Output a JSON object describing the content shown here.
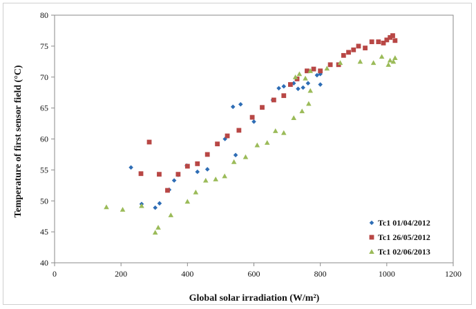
{
  "chart_data": {
    "type": "scatter",
    "xlabel": "Global solar irradiation (W/m²)",
    "ylabel": "Temperature of first sensor field (°C)",
    "xlim": [
      0,
      1200
    ],
    "ylim": [
      40,
      80
    ],
    "xticks": [
      0,
      200,
      400,
      600,
      800,
      1000,
      1200
    ],
    "yticks": [
      40,
      45,
      50,
      55,
      60,
      65,
      70,
      75,
      80
    ],
    "grid": false,
    "legend_position": "bottom-right",
    "series": [
      {
        "name": "Tc1 01/04/2012",
        "marker": "diamond",
        "color": "#2e6db5",
        "points": [
          [
            230,
            55.4
          ],
          [
            262,
            49.5
          ],
          [
            303,
            48.9
          ],
          [
            316,
            49.6
          ],
          [
            345,
            51.8
          ],
          [
            360,
            53.3
          ],
          [
            372,
            54.2
          ],
          [
            398,
            55.7
          ],
          [
            430,
            54.7
          ],
          [
            460,
            55.1
          ],
          [
            513,
            60
          ],
          [
            537,
            65.2
          ],
          [
            545,
            57.4
          ],
          [
            560,
            65.6
          ],
          [
            600,
            62.8
          ],
          [
            657,
            66.3
          ],
          [
            675,
            68.2
          ],
          [
            690,
            68.5
          ],
          [
            720,
            69
          ],
          [
            733,
            68.1
          ],
          [
            748,
            68.3
          ],
          [
            763,
            69
          ],
          [
            790,
            70.3
          ],
          [
            800,
            68.8
          ],
          [
            800,
            70.5
          ]
        ]
      },
      {
        "name": "Tc1 26/05/2012",
        "marker": "square",
        "color": "#b84745",
        "points": [
          [
            260,
            54.4
          ],
          [
            285,
            59.5
          ],
          [
            315,
            54.3
          ],
          [
            340,
            51.7
          ],
          [
            372,
            54.3
          ],
          [
            400,
            55.6
          ],
          [
            430,
            56
          ],
          [
            460,
            57.5
          ],
          [
            490,
            59.2
          ],
          [
            520,
            60.5
          ],
          [
            555,
            61.4
          ],
          [
            595,
            63.5
          ],
          [
            625,
            65.1
          ],
          [
            660,
            66.3
          ],
          [
            690,
            67
          ],
          [
            710,
            68.8
          ],
          [
            730,
            69.7
          ],
          [
            760,
            71
          ],
          [
            780,
            71.3
          ],
          [
            800,
            71
          ],
          [
            830,
            72
          ],
          [
            855,
            72
          ],
          [
            870,
            73.5
          ],
          [
            885,
            74
          ],
          [
            900,
            74.4
          ],
          [
            915,
            75
          ],
          [
            935,
            74.7
          ],
          [
            955,
            75.7
          ],
          [
            975,
            75.7
          ],
          [
            990,
            75.5
          ],
          [
            1000,
            76
          ],
          [
            1010,
            76.4
          ],
          [
            1018,
            76.7
          ],
          [
            1025,
            75.9
          ]
        ]
      },
      {
        "name": "Tc1 02/06/2013",
        "marker": "triangle",
        "color": "#9bbb59",
        "points": [
          [
            156,
            49
          ],
          [
            205,
            48.6
          ],
          [
            262,
            49.2
          ],
          [
            303,
            44.9
          ],
          [
            312,
            45.7
          ],
          [
            350,
            47.7
          ],
          [
            400,
            49.9
          ],
          [
            425,
            51.4
          ],
          [
            455,
            53.3
          ],
          [
            485,
            53.5
          ],
          [
            512,
            54
          ],
          [
            540,
            56.3
          ],
          [
            575,
            57.1
          ],
          [
            610,
            59
          ],
          [
            640,
            59.4
          ],
          [
            665,
            61.3
          ],
          [
            690,
            61
          ],
          [
            720,
            63.4
          ],
          [
            725,
            70
          ],
          [
            737,
            70.5
          ],
          [
            745,
            64.5
          ],
          [
            755,
            69.8
          ],
          [
            765,
            65.7
          ],
          [
            770,
            71
          ],
          [
            770,
            67.8
          ],
          [
            820,
            71.4
          ],
          [
            860,
            72.3
          ],
          [
            920,
            72.5
          ],
          [
            960,
            72.3
          ],
          [
            985,
            73.3
          ],
          [
            1005,
            72
          ],
          [
            1010,
            72.7
          ],
          [
            1020,
            72.5
          ],
          [
            1025,
            73.1
          ]
        ]
      }
    ]
  }
}
